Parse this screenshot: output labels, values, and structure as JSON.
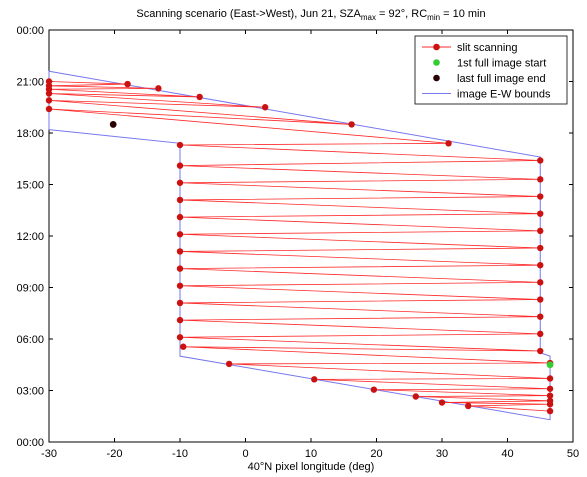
{
  "chart_data": {
    "type": "line",
    "title": {
      "prefix": "Scanning scenario (East->West), Jun 21, SZA",
      "sub1": "max",
      "middle": " = 92°, RC",
      "sub2": "min",
      "suffix": " = 10 min"
    },
    "xlabel": "40°N pixel longitude (deg)",
    "ylabel": "",
    "xlim": [
      -30,
      50
    ],
    "ylim": [
      0,
      24
    ],
    "xticks": [
      -30,
      -20,
      -10,
      0,
      10,
      20,
      30,
      40,
      50
    ],
    "xtick_labels": [
      "-30",
      "-20",
      "-10",
      "0",
      "10",
      "20",
      "30",
      "40",
      "50"
    ],
    "yticks": [
      0,
      3,
      6,
      9,
      12,
      15,
      18,
      21,
      24
    ],
    "ytick_labels": [
      "00:00",
      "03:00",
      "06:00",
      "09:00",
      "12:00",
      "15:00",
      "18:00",
      "21:00",
      "00:00"
    ],
    "grid": false,
    "legend_position": "top-right",
    "colors": {
      "slit": "#ff2a2a",
      "marker": "#cc1111",
      "start": "#33cc33",
      "end": "#2a0000",
      "bounds": "#7777ee"
    },
    "series": [
      {
        "name": "slit scanning",
        "style": "line-with-markers",
        "points": [
          [
            46.5,
            1.8
          ],
          [
            34,
            2.1
          ],
          [
            46.5,
            2.2
          ],
          [
            30,
            2.3
          ],
          [
            46.5,
            2.4
          ],
          [
            26,
            2.65
          ],
          [
            46.5,
            2.7
          ],
          [
            19.6,
            3.05
          ],
          [
            46.5,
            3.1
          ],
          [
            10.5,
            3.65
          ],
          [
            46.5,
            3.7
          ],
          [
            -2.5,
            4.55
          ],
          [
            46.5,
            4.6
          ],
          [
            -9.5,
            5.55
          ],
          [
            45,
            5.3
          ],
          [
            -10,
            6.1
          ],
          [
            45,
            6.3
          ],
          [
            -10,
            7.1
          ],
          [
            45,
            7.3
          ],
          [
            -10,
            8.1
          ],
          [
            45,
            8.3
          ],
          [
            -10,
            9.1
          ],
          [
            45,
            9.3
          ],
          [
            -10,
            10.1
          ],
          [
            45,
            10.3
          ],
          [
            -10,
            11.1
          ],
          [
            45,
            11.3
          ],
          [
            -10,
            12.1
          ],
          [
            45,
            12.3
          ],
          [
            -10,
            13.1
          ],
          [
            45,
            13.3
          ],
          [
            -10,
            14.1
          ],
          [
            45,
            14.3
          ],
          [
            -10,
            15.1
          ],
          [
            45,
            15.3
          ],
          [
            -10,
            16.1
          ],
          [
            45,
            16.4
          ],
          [
            -10,
            17.3
          ],
          [
            31,
            17.4
          ],
          [
            -30,
            19.4
          ],
          [
            16.2,
            18.5
          ],
          [
            -30,
            19.9
          ],
          [
            3,
            19.5
          ],
          [
            -30,
            20.3
          ],
          [
            -7,
            20.1
          ],
          [
            -30,
            20.55
          ],
          [
            -13.3,
            20.6
          ],
          [
            -30,
            20.75
          ],
          [
            -18,
            20.85
          ],
          [
            -30,
            21.0
          ]
        ]
      },
      {
        "name": "1st full image start",
        "style": "marker",
        "points": [
          [
            46.5,
            4.5
          ]
        ]
      },
      {
        "name": "last full image end",
        "style": "marker",
        "points": [
          [
            -20.2,
            18.5
          ]
        ]
      },
      {
        "name": "image E-W bounds",
        "style": "line",
        "polygon": [
          [
            -30,
            18.2
          ],
          [
            -30,
            21.6
          ],
          [
            45,
            16.6
          ],
          [
            45,
            5.2
          ],
          [
            46.5,
            5.0
          ],
          [
            46.5,
            1.3
          ],
          [
            -10,
            5.0
          ],
          [
            -10,
            17.4
          ],
          [
            -30,
            18.2
          ]
        ]
      }
    ]
  }
}
